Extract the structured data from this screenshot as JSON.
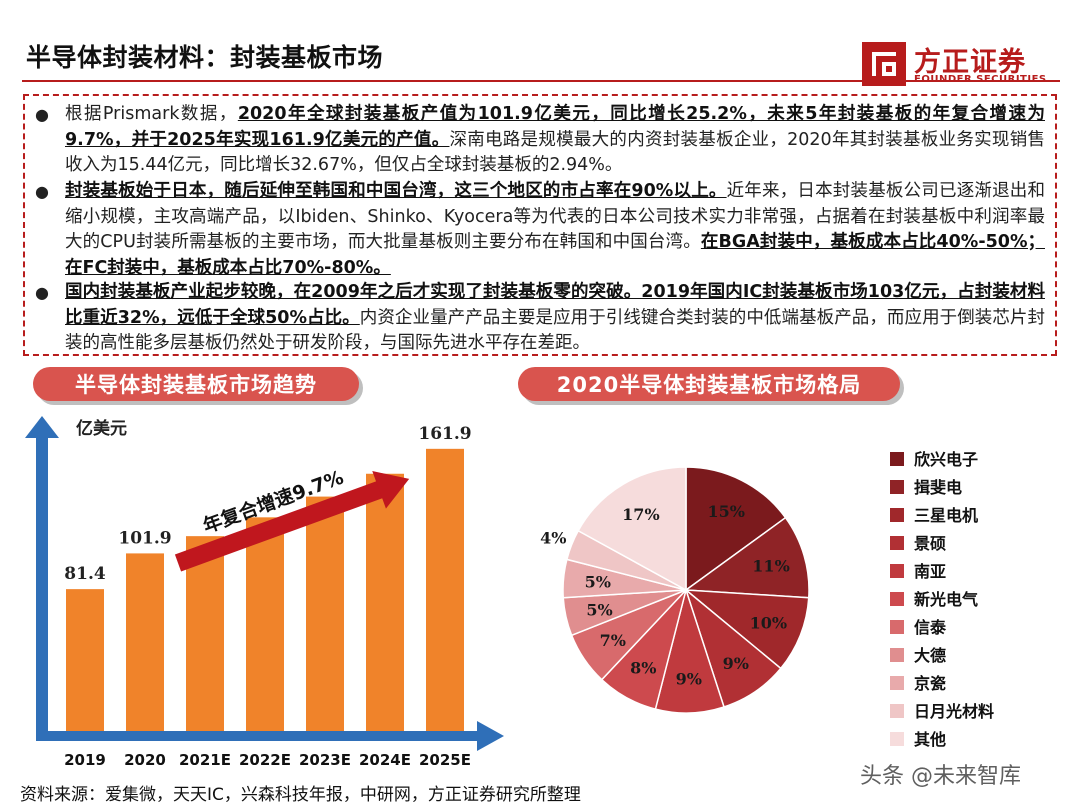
{
  "header": {
    "title": "半导体封装材料：封装基板市场"
  },
  "logo": {
    "name_cn": "方正证券",
    "name_en": "FOUNDER SECURITIES"
  },
  "bullets": [
    [
      {
        "t": "根据Prismark数据，",
        "b": false
      },
      {
        "t": "2020年全球封装基板产值为101.9亿美元，同比增长25.2%，未来5年封装基板的年复合增速为9.7%，并于2025年实现161.9亿美元的产值。",
        "b": true
      },
      {
        "t": "深南电路是规模最大的内资封装基板企业，2020年其封装基板业务实现销售收入为15.44亿元，同比增长32.67%，但仅占全球封装基板的2.94%。",
        "b": false
      }
    ],
    [
      {
        "t": "封装基板始于日本，随后延伸至韩国和中国台湾，这三个地区的市占率在90%以上。",
        "b": true
      },
      {
        "t": "近年来，日本封装基板公司已逐渐退出和缩小规模，主攻高端产品，以Ibiden、Shinko、Kyocera等为代表的日本公司技术实力非常强，占据着在封装基板中利润率最大的CPU封装所需基板的主要市场，而大批量基板则主要分布在韩国和中国台湾。",
        "b": false
      },
      {
        "t": "在BGA封装中，基板成本占比40%-50%；在FC封装中，基板成本占比70%-80%。",
        "b": true
      }
    ],
    [
      {
        "t": "国内封装基板产业起步较晚，在2009年之后才实现了封装基板零的突破。2019年国内IC封装基板市场103亿元，占封装材料比重近32%，远低于全球50%占比。",
        "b": true
      },
      {
        "t": "内资企业量产产品主要是应用于引线键合类封装的中低端基板产品，而应用于倒装芯片封装的高性能多层基板仍然处于研发阶段，与国际先进水平存在差距。",
        "b": false
      }
    ]
  ],
  "sections": {
    "left_banner": "半导体封装基板市场趋势",
    "right_banner": "2020半导体封装基板市场格局"
  },
  "chart_data": [
    {
      "type": "bar",
      "ylabel": "亿美元",
      "categories": [
        "2019",
        "2020",
        "2021E",
        "2022E",
        "2023E",
        "2024E",
        "2025E"
      ],
      "values": [
        81.4,
        101.9,
        111.8,
        122.6,
        134.5,
        147.6,
        161.9
      ],
      "data_labels": [
        "81.4",
        "101.9",
        "",
        "",
        "",
        "",
        "161.9"
      ],
      "annotation": "年复合增速9.7%",
      "bar_color": "#f0832a",
      "axis_color": "#2f6fb8",
      "arrow_color": "#c0171e"
    },
    {
      "type": "pie",
      "labels": [
        "欣兴电子",
        "揖斐电",
        "三星电机",
        "景硕",
        "南亚",
        "新光电气",
        "信泰",
        "大德",
        "京瓷",
        "日月光材料",
        "其他"
      ],
      "values": [
        15,
        11,
        10,
        9,
        9,
        8,
        7,
        5,
        5,
        4,
        17
      ],
      "value_labels": [
        "15%",
        "11%",
        "10%",
        "9%",
        "9%",
        "8%",
        "7%",
        "5%",
        "5%",
        "4%",
        "17%"
      ],
      "colors": [
        "#7b1a1d",
        "#8f2326",
        "#a0282b",
        "#b13034",
        "#c03a3e",
        "#cd4a4e",
        "#d86a6c",
        "#e08e8f",
        "#e8aaab",
        "#efc6c6",
        "#f6dcdc"
      ],
      "legend_position": "right"
    }
  ],
  "footer": {
    "source": "资料来源：爱集微，天天IC，兴森科技年报，中研网，方正证券研究所整理"
  },
  "watermark": "头条 @未来智库"
}
